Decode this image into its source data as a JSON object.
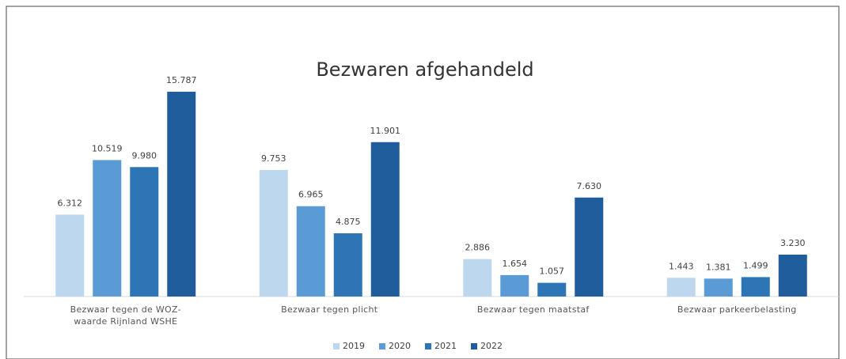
{
  "chart_data": {
    "type": "bar",
    "title": "Bezwaren afgehandeld",
    "categories": [
      "Bezwaar tegen de WOZ-waarde Rijnland WSHE",
      "Bezwaar tegen plicht",
      "Bezwaar tegen maatstaf",
      "Bezwaar parkeerbelasting"
    ],
    "series": [
      {
        "name": "2019",
        "color": "#bdd7ef",
        "values": [
          6312,
          9753,
          2886,
          1443
        ],
        "value_labels": [
          "6.312",
          "9.753",
          "2.886",
          "1.443"
        ]
      },
      {
        "name": "2020",
        "color": "#5b9bd5",
        "values": [
          10519,
          6965,
          1654,
          1381
        ],
        "value_labels": [
          "10.519",
          "6.965",
          "1.654",
          "1.381"
        ]
      },
      {
        "name": "2021",
        "color": "#2e75b6",
        "values": [
          9980,
          4875,
          1057,
          1499
        ],
        "value_labels": [
          "9.980",
          "4.875",
          "1.057",
          "1.499"
        ]
      },
      {
        "name": "2022",
        "color": "#1f5d9c",
        "values": [
          15787,
          11901,
          7630,
          3230
        ],
        "value_labels": [
          "15.787",
          "11.901",
          "7.630",
          "3.230"
        ]
      }
    ],
    "legend": "bottom"
  }
}
